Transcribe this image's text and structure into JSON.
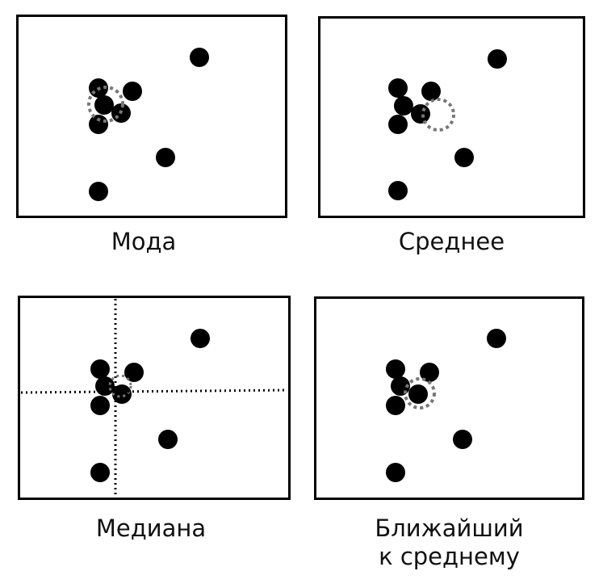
{
  "panels": [
    {
      "caption": [
        "Мода"
      ],
      "marker": "circle",
      "marker_index": 0
    },
    {
      "caption": [
        "Среднее"
      ],
      "marker": "circle",
      "marker_index": 1
    },
    {
      "caption": [
        "Медиана"
      ],
      "marker": "crosshair",
      "marker_index": 2
    },
    {
      "caption": [
        "Ближайший",
        "к среднему"
      ],
      "marker": "circle",
      "marker_index": 3
    }
  ],
  "colors": {
    "point": "#000000",
    "marker": "#777777",
    "crosshair": "#000000",
    "frame": "#000000"
  }
}
